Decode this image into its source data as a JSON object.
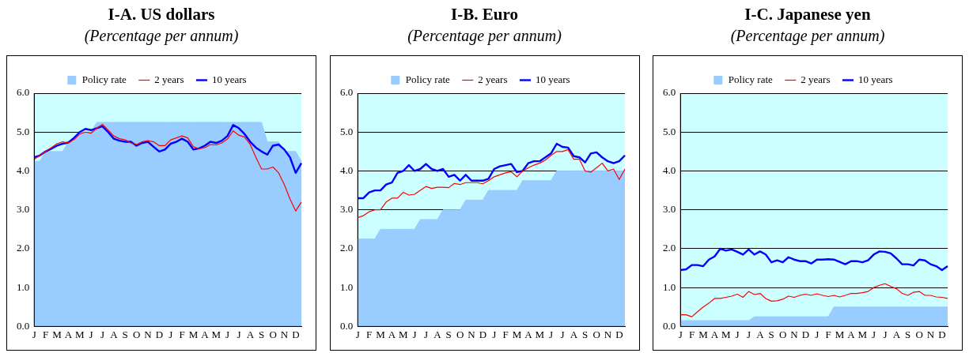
{
  "chart_data": [
    {
      "type": "line",
      "title": "I-A.  US dollars",
      "subtitle": "(Percentage per annum)",
      "categories": [
        "J",
        null,
        "F",
        null,
        "M",
        null,
        "A",
        null,
        "M",
        null,
        "J",
        null,
        "J",
        null,
        "A",
        null,
        "S",
        null,
        "O",
        null,
        "N",
        null,
        "D",
        null,
        "J",
        null,
        "F",
        null,
        "M",
        null,
        "A",
        null,
        "M",
        null,
        "J",
        null,
        "J",
        null,
        "A",
        null,
        "S",
        null,
        "O",
        null,
        "N",
        null,
        "D",
        null
      ],
      "ylim": [
        0,
        6
      ],
      "yticks": [
        {
          "value": 0,
          "label": "0.0"
        },
        {
          "value": 1,
          "label": "1.0"
        },
        {
          "value": 2,
          "label": "2.0"
        },
        {
          "value": 3,
          "label": "3.0"
        },
        {
          "value": 4,
          "label": "4.0"
        },
        {
          "value": 5,
          "label": "5.0"
        },
        {
          "value": 6,
          "label": "6.0"
        }
      ],
      "grid": "y",
      "legend": "top",
      "marker": "none",
      "line_style": "solid",
      "series": [
        {
          "name": "Policy rate",
          "type": "area",
          "color": "#99ccff",
          "values": [
            4.25,
            4.25,
            4.5,
            4.5,
            4.5,
            4.5,
            4.75,
            4.75,
            5.0,
            5.0,
            5.0,
            5.25,
            5.25,
            5.25,
            5.25,
            5.25,
            5.25,
            5.25,
            5.25,
            5.25,
            5.25,
            5.25,
            5.25,
            5.25,
            5.25,
            5.25,
            5.25,
            5.25,
            5.25,
            5.25,
            5.25,
            5.25,
            5.25,
            5.25,
            5.25,
            5.25,
            5.25,
            5.25,
            5.25,
            5.25,
            5.25,
            4.75,
            4.75,
            4.75,
            4.5,
            4.5,
            4.5,
            4.25
          ]
        },
        {
          "name": "2 years",
          "color": "#ff0000",
          "values": [
            4.3,
            4.4,
            4.5,
            4.6,
            4.7,
            4.75,
            4.72,
            4.8,
            4.95,
            5.0,
            4.97,
            5.1,
            5.2,
            5.05,
            4.9,
            4.83,
            4.8,
            4.72,
            4.68,
            4.75,
            4.78,
            4.75,
            4.65,
            4.65,
            4.8,
            4.85,
            4.9,
            4.85,
            4.62,
            4.57,
            4.6,
            4.68,
            4.67,
            4.72,
            4.82,
            5.03,
            4.92,
            4.87,
            4.68,
            4.35,
            4.05,
            4.05,
            4.1,
            3.95,
            3.65,
            3.28,
            2.97,
            3.2
          ]
        },
        {
          "name": "10 years",
          "color": "#0000ff",
          "values": [
            4.35,
            4.4,
            4.5,
            4.57,
            4.65,
            4.7,
            4.73,
            4.85,
            5.0,
            5.08,
            5.05,
            5.1,
            5.15,
            5.0,
            4.83,
            4.78,
            4.75,
            4.75,
            4.65,
            4.72,
            4.75,
            4.62,
            4.5,
            4.55,
            4.7,
            4.75,
            4.83,
            4.75,
            4.55,
            4.58,
            4.65,
            4.75,
            4.72,
            4.78,
            4.9,
            5.18,
            5.1,
            4.95,
            4.75,
            4.6,
            4.5,
            4.42,
            4.65,
            4.68,
            4.55,
            4.35,
            3.95,
            4.2
          ]
        }
      ]
    },
    {
      "type": "line",
      "title": "I-B.  Euro",
      "subtitle": "(Percentage per annum)",
      "categories": [
        "J",
        null,
        "F",
        null,
        "M",
        null,
        "A",
        null,
        "M",
        null,
        "J",
        null,
        "J",
        null,
        "A",
        null,
        "S",
        null,
        "O",
        null,
        "N",
        null,
        "D",
        null,
        "J",
        null,
        "F",
        null,
        "M",
        null,
        "A",
        null,
        "M",
        null,
        "J",
        null,
        "J",
        null,
        "A",
        null,
        "S",
        null,
        "O",
        null,
        "N",
        null,
        "D",
        null
      ],
      "ylim": [
        0,
        6
      ],
      "yticks": [
        {
          "value": 0,
          "label": "0.0"
        },
        {
          "value": 1,
          "label": "1.0"
        },
        {
          "value": 2,
          "label": "2.0"
        },
        {
          "value": 3,
          "label": "3.0"
        },
        {
          "value": 4,
          "label": "4.0"
        },
        {
          "value": 5,
          "label": "5.0"
        },
        {
          "value": 6,
          "label": "6.0"
        }
      ],
      "grid": "y",
      "legend": "top",
      "marker": "none",
      "line_style": "solid",
      "series": [
        {
          "name": "Policy rate",
          "type": "area",
          "color": "#99ccff",
          "values": [
            2.25,
            2.25,
            2.25,
            2.25,
            2.5,
            2.5,
            2.5,
            2.5,
            2.5,
            2.5,
            2.5,
            2.75,
            2.75,
            2.75,
            2.75,
            3.0,
            3.0,
            3.0,
            3.0,
            3.25,
            3.25,
            3.25,
            3.25,
            3.5,
            3.5,
            3.5,
            3.5,
            3.5,
            3.5,
            3.75,
            3.75,
            3.75,
            3.75,
            3.75,
            3.75,
            4.0,
            4.0,
            4.0,
            4.0,
            4.0,
            4.0,
            4.0,
            4.0,
            4.0,
            4.0,
            4.0,
            4.0,
            4.0
          ]
        },
        {
          "name": "2 years",
          "color": "#ff0000",
          "values": [
            2.8,
            2.85,
            2.95,
            3.0,
            3.0,
            3.2,
            3.3,
            3.3,
            3.45,
            3.38,
            3.4,
            3.5,
            3.6,
            3.55,
            3.58,
            3.58,
            3.57,
            3.68,
            3.65,
            3.7,
            3.7,
            3.7,
            3.67,
            3.75,
            3.85,
            3.9,
            3.95,
            3.98,
            3.85,
            4.0,
            4.08,
            4.15,
            4.2,
            4.28,
            4.4,
            4.5,
            4.5,
            4.55,
            4.3,
            4.3,
            4.0,
            3.97,
            4.08,
            4.2,
            4.0,
            4.05,
            3.78,
            4.05
          ]
        },
        {
          "name": "10 years",
          "color": "#0000ff",
          "values": [
            3.3,
            3.3,
            3.45,
            3.5,
            3.5,
            3.65,
            3.7,
            3.95,
            4.0,
            4.15,
            4.0,
            4.05,
            4.18,
            4.05,
            4.0,
            4.05,
            3.85,
            3.9,
            3.75,
            3.9,
            3.75,
            3.75,
            3.75,
            3.8,
            4.05,
            4.12,
            4.15,
            4.18,
            3.97,
            4.0,
            4.2,
            4.25,
            4.25,
            4.35,
            4.45,
            4.7,
            4.62,
            4.6,
            4.38,
            4.35,
            4.22,
            4.45,
            4.48,
            4.35,
            4.25,
            4.2,
            4.25,
            4.4
          ]
        }
      ]
    },
    {
      "type": "line",
      "title": "I-C.  Japanese yen",
      "subtitle": "(Percentage per annum)",
      "categories": [
        "J",
        null,
        "F",
        null,
        "M",
        null,
        "A",
        null,
        "M",
        null,
        "J",
        null,
        "J",
        null,
        "A",
        null,
        "S",
        null,
        "O",
        null,
        "N",
        null,
        "D",
        null,
        "J",
        null,
        "F",
        null,
        "M",
        null,
        "A",
        null,
        "M",
        null,
        "J",
        null,
        "J",
        null,
        "A",
        null,
        "S",
        null,
        "O",
        null,
        "N",
        null,
        "D",
        null
      ],
      "ylim": [
        0,
        6
      ],
      "yticks": [
        {
          "value": 0,
          "label": "0.0"
        },
        {
          "value": 1,
          "label": "1.0"
        },
        {
          "value": 2,
          "label": "2.0"
        },
        {
          "value": 3,
          "label": "3.0"
        },
        {
          "value": 4,
          "label": "4.0"
        },
        {
          "value": 5,
          "label": "5.0"
        },
        {
          "value": 6,
          "label": "6.0"
        }
      ],
      "grid": "y",
      "legend": "top",
      "marker": "none",
      "line_style": "solid",
      "series": [
        {
          "name": "Policy rate",
          "type": "area",
          "color": "#99ccff",
          "values": [
            0.15,
            0.15,
            0.15,
            0.15,
            0.15,
            0.15,
            0.15,
            0.15,
            0.15,
            0.15,
            0.15,
            0.15,
            0.15,
            0.25,
            0.25,
            0.25,
            0.25,
            0.25,
            0.25,
            0.25,
            0.25,
            0.25,
            0.25,
            0.25,
            0.25,
            0.25,
            0.25,
            0.5,
            0.5,
            0.5,
            0.5,
            0.5,
            0.5,
            0.5,
            0.5,
            0.5,
            0.5,
            0.5,
            0.5,
            0.5,
            0.5,
            0.5,
            0.5,
            0.5,
            0.5,
            0.5,
            0.5,
            0.5
          ]
        },
        {
          "name": "2 years",
          "color": "#ff0000",
          "values": [
            0.3,
            0.3,
            0.25,
            0.38,
            0.5,
            0.6,
            0.72,
            0.72,
            0.75,
            0.78,
            0.83,
            0.75,
            0.9,
            0.82,
            0.85,
            0.72,
            0.65,
            0.66,
            0.7,
            0.78,
            0.75,
            0.8,
            0.83,
            0.8,
            0.84,
            0.8,
            0.77,
            0.8,
            0.76,
            0.8,
            0.85,
            0.85,
            0.87,
            0.9,
            1.0,
            1.06,
            1.1,
            1.03,
            0.97,
            0.85,
            0.8,
            0.88,
            0.9,
            0.8,
            0.8,
            0.76,
            0.75,
            0.72
          ]
        },
        {
          "name": "10 years",
          "color": "#0000ff",
          "values": [
            1.45,
            1.47,
            1.58,
            1.58,
            1.55,
            1.72,
            1.8,
            2.0,
            1.95,
            1.98,
            1.92,
            1.85,
            1.98,
            1.85,
            1.93,
            1.85,
            1.65,
            1.7,
            1.65,
            1.78,
            1.72,
            1.68,
            1.68,
            1.62,
            1.72,
            1.72,
            1.73,
            1.72,
            1.66,
            1.6,
            1.68,
            1.68,
            1.65,
            1.7,
            1.85,
            1.93,
            1.92,
            1.88,
            1.75,
            1.6,
            1.6,
            1.57,
            1.72,
            1.7,
            1.6,
            1.55,
            1.45,
            1.55
          ]
        }
      ]
    }
  ]
}
